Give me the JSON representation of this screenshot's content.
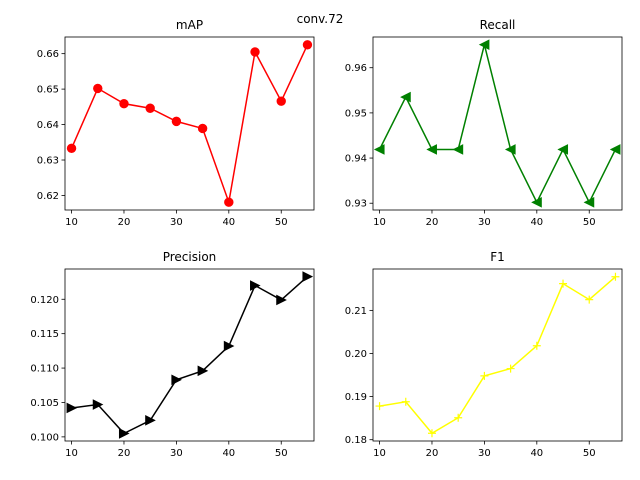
{
  "suptitle": "conv.72",
  "chart_data": [
    {
      "type": "line",
      "title": "mAP",
      "color": "#ff0000",
      "marker": "circle",
      "x": [
        10,
        15,
        20,
        25,
        30,
        35,
        40,
        45,
        50,
        55
      ],
      "y": [
        0.6333,
        0.6502,
        0.6459,
        0.6446,
        0.6409,
        0.6389,
        0.6181,
        0.6605,
        0.6466,
        0.6625
      ],
      "xlim": [
        8.75,
        56.25
      ],
      "ylim": [
        0.6159,
        0.6647
      ],
      "xticks": [
        10,
        20,
        30,
        40,
        50
      ],
      "yticks": [
        0.62,
        0.63,
        0.64,
        0.65,
        0.66
      ],
      "xticklabels": [
        "10",
        "20",
        "30",
        "40",
        "50"
      ],
      "yticklabels": [
        "0.62",
        "0.63",
        "0.64",
        "0.65",
        "0.66"
      ]
    },
    {
      "type": "line",
      "title": "Recall",
      "color": "#008000",
      "marker": "triangle-left",
      "x": [
        10,
        15,
        20,
        25,
        30,
        35,
        40,
        45,
        50,
        55
      ],
      "y": [
        0.9419,
        0.9535,
        0.9419,
        0.9419,
        0.9651,
        0.9419,
        0.9302,
        0.9419,
        0.9302,
        0.9419
      ],
      "xlim": [
        8.75,
        56.25
      ],
      "ylim": [
        0.9285,
        0.9668
      ],
      "xticks": [
        10,
        20,
        30,
        40,
        50
      ],
      "yticks": [
        0.93,
        0.94,
        0.95,
        0.96
      ],
      "xticklabels": [
        "10",
        "20",
        "30",
        "40",
        "50"
      ],
      "yticklabels": [
        "0.93",
        "0.94",
        "0.95",
        "0.96"
      ]
    },
    {
      "type": "line",
      "title": "Precision",
      "color": "#000000",
      "marker": "triangle-right",
      "x": [
        10,
        15,
        20,
        25,
        30,
        35,
        40,
        45,
        50,
        55
      ],
      "y": [
        0.1042,
        0.1047,
        0.1005,
        0.1024,
        0.1083,
        0.1096,
        0.1132,
        0.122,
        0.1199,
        0.1233
      ],
      "xlim": [
        8.75,
        56.25
      ],
      "ylim": [
        0.0994,
        0.1244
      ],
      "xticks": [
        10,
        20,
        30,
        40,
        50
      ],
      "yticks": [
        0.1,
        0.105,
        0.11,
        0.115,
        0.12
      ],
      "xticklabels": [
        "10",
        "20",
        "30",
        "40",
        "50"
      ],
      "yticklabels": [
        "0.100",
        "0.105",
        "0.110",
        "0.115",
        "0.120"
      ]
    },
    {
      "type": "line",
      "title": "F1",
      "color": "#ffff00",
      "marker": "plus",
      "x": [
        10,
        15,
        20,
        25,
        30,
        35,
        40,
        45,
        50,
        55
      ],
      "y": [
        0.1878,
        0.1888,
        0.1815,
        0.1851,
        0.1948,
        0.1965,
        0.2018,
        0.2162,
        0.2125,
        0.2178
      ],
      "xlim": [
        8.75,
        56.25
      ],
      "ylim": [
        0.1797,
        0.2196
      ],
      "xticks": [
        10,
        20,
        30,
        40,
        50
      ],
      "yticks": [
        0.18,
        0.19,
        0.2,
        0.21
      ],
      "xticklabels": [
        "10",
        "20",
        "30",
        "40",
        "50"
      ],
      "yticklabels": [
        "0.18",
        "0.19",
        "0.20",
        "0.21"
      ]
    }
  ]
}
